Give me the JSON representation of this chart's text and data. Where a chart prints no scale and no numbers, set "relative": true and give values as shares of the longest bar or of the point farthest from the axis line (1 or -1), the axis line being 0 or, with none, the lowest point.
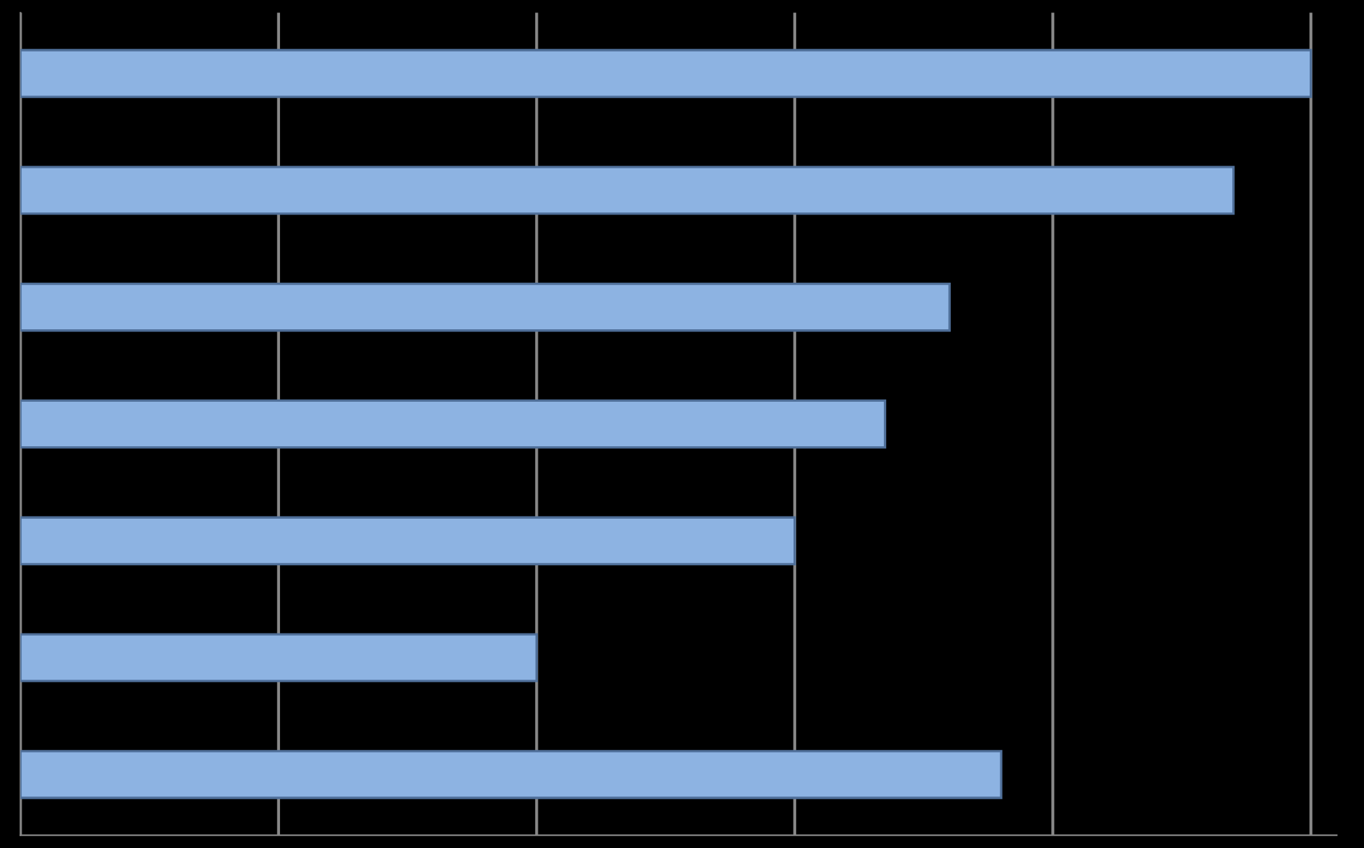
{
  "chart_data": {
    "type": "bar",
    "orientation": "horizontal",
    "relative": true,
    "categories": [
      null,
      null,
      null,
      null,
      null,
      null,
      null
    ],
    "values": [
      1,
      0.94,
      0.72,
      0.67,
      0.6,
      0.4,
      0.76
    ],
    "color": "#8db3e2",
    "grid": "x",
    "tick_labels": false,
    "legend": false
  }
}
